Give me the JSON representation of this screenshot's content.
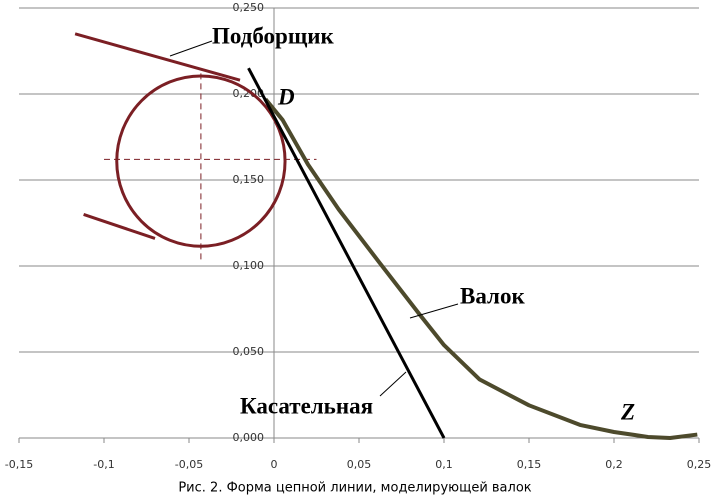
{
  "chart_data": {
    "type": "line",
    "caption": "Рис. 2. Форма цепной линии, моделирующей валок",
    "xlim": [
      -0.15,
      0.25
    ],
    "ylim": [
      0,
      0.25
    ],
    "xticks": [
      {
        "value": -0.15,
        "label": "-0,15"
      },
      {
        "value": -0.1,
        "label": "-0,1"
      },
      {
        "value": -0.05,
        "label": "-0,05"
      },
      0,
      {
        "value": 0.05,
        "label": "0,05"
      },
      {
        "value": 0.1,
        "label": "0,1"
      },
      {
        "value": 0.15,
        "label": "0,15"
      },
      {
        "value": 0.2,
        "label": "0,2"
      },
      {
        "value": 0.25,
        "label": "0,25"
      }
    ],
    "yticks": [
      {
        "value": 0,
        "label": "0,000"
      },
      {
        "value": 0.05,
        "label": "0,050"
      },
      {
        "value": 0.1,
        "label": "0,100"
      },
      {
        "value": 0.15,
        "label": "0,150"
      },
      {
        "value": 0.2,
        "label": "0,200"
      },
      {
        "value": 0.25,
        "label": "0,250"
      }
    ],
    "grid": true,
    "series": [
      {
        "name": "Валок",
        "color": "#4d4a2c",
        "x": [
          -0.005,
          0.005,
          0.02,
          0.038,
          0.062,
          0.0855,
          0.1,
          0.121,
          0.15,
          0.18,
          0.2,
          0.22,
          0.233,
          0.249
        ],
        "y": [
          0.197,
          0.185,
          0.159,
          0.133,
          0.102,
          0.072,
          0.054,
          0.034,
          0.019,
          0.0076,
          0.0035,
          0.0006,
          0,
          0.002
        ]
      },
      {
        "name": "Касательная",
        "color": "#000000",
        "x": [
          -0.015,
          0.1
        ],
        "y": [
          0.215,
          0
        ]
      }
    ],
    "picker": {
      "name": "Подборщик",
      "color": "#7b1f24",
      "center": [
        -0.043,
        0.161
      ],
      "radius": 0.0495,
      "lines": [
        {
          "x": [
            -0.117,
            -0.02
          ],
          "y": [
            0.235,
            0.208
          ]
        },
        {
          "x": [
            -0.112,
            -0.07
          ],
          "y": [
            0.13,
            0.116
          ]
        }
      ],
      "guides": [
        {
          "x": [
            -0.1,
            0.025
          ],
          "y": [
            0.162,
            0.162
          ]
        },
        {
          "x": [
            -0.043,
            -0.043
          ],
          "y": [
            0.212,
            0.102
          ]
        }
      ]
    },
    "annotations": [
      "D",
      "Z"
    ]
  }
}
